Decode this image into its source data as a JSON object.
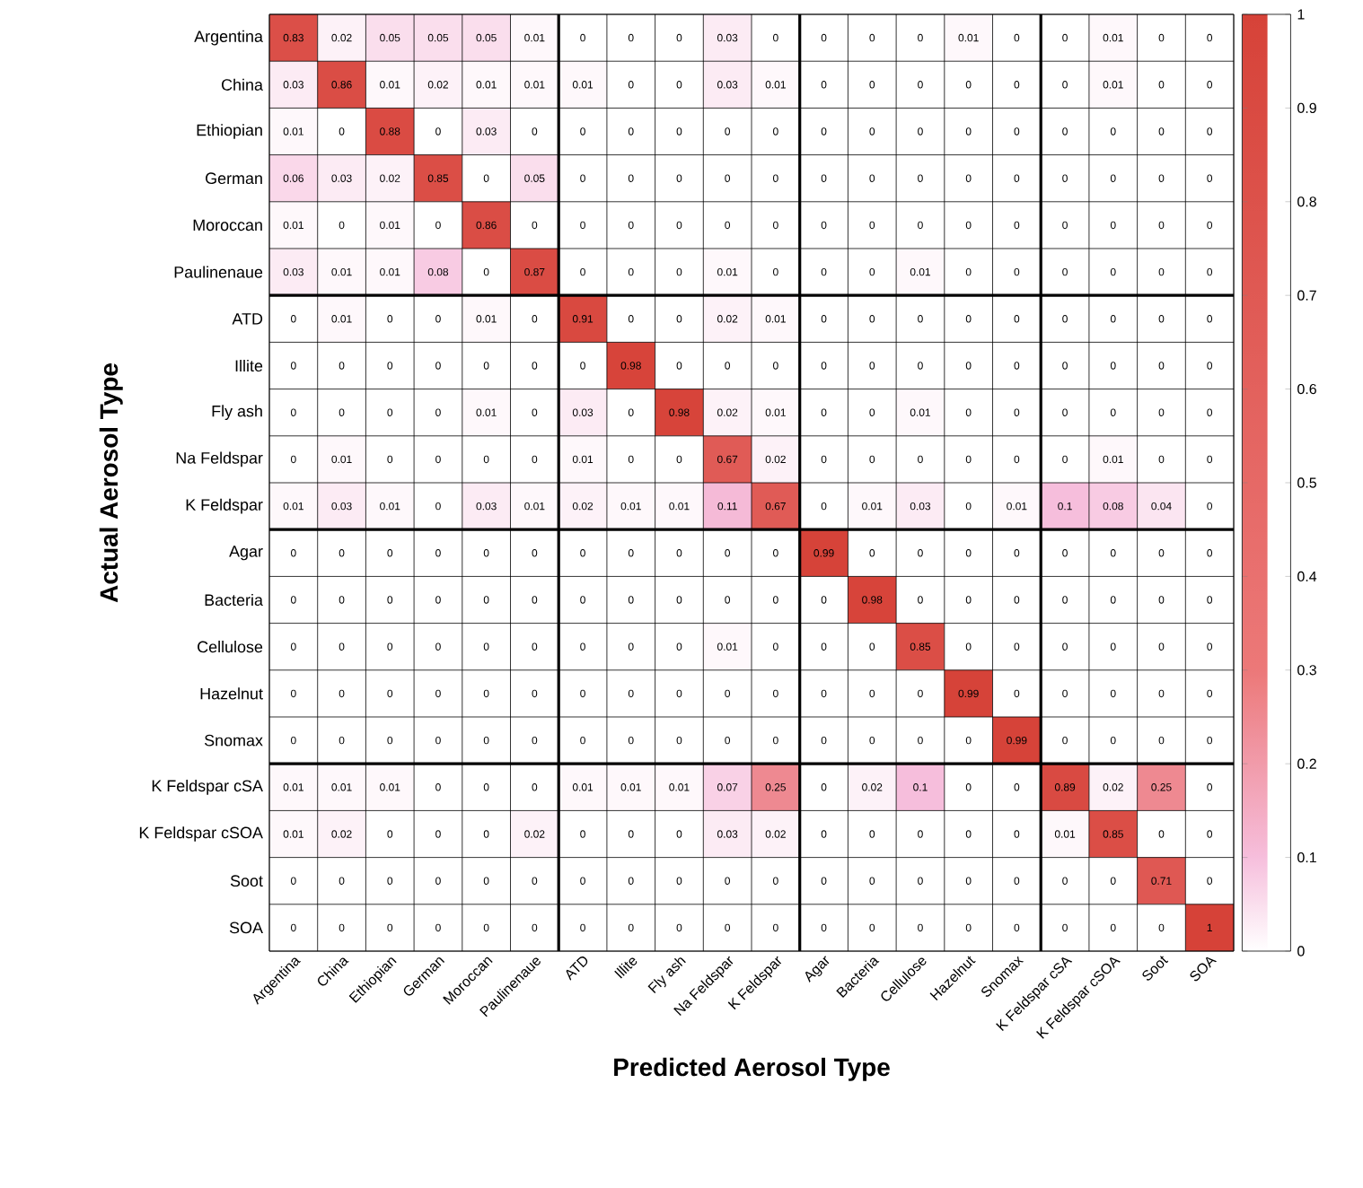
{
  "chart_data": {
    "type": "heatmap",
    "xlabel": "Predicted Aerosol Type",
    "ylabel": "Actual Aerosol Type",
    "categories": [
      "Argentina",
      "China",
      "Ethiopian",
      "German",
      "Moroccan",
      "Paulinenaue",
      "ATD",
      "Illite",
      "Fly ash",
      "Na Feldspar",
      "K Feldspar",
      "Agar",
      "Bacteria",
      "Cellulose",
      "Hazelnut",
      "Snomax",
      "K Feldspar cSA",
      "K Feldspar cSOA",
      "Soot",
      "SOA"
    ],
    "y_categories": [
      "Argentina",
      "China",
      "Ethiopian",
      "German",
      "Moroccan",
      "Paulinenaue",
      "ATD",
      "Illite",
      "Fly ash",
      "Na Feldspar",
      "K Feldspar",
      "Agar",
      "Bacteria",
      "Cellulose",
      "Hazelnut",
      "Snomax",
      "K Feldspar cSA",
      "K Feldspar cSOA",
      "Soot",
      "SOA"
    ],
    "cells": [
      [
        0.83,
        0.02,
        0.05,
        0.05,
        0.05,
        0.01,
        0,
        0,
        0,
        0.03,
        0,
        0,
        0,
        0,
        0.01,
        0,
        0,
        0.01,
        0,
        0
      ],
      [
        0.03,
        0.86,
        0.01,
        0.02,
        0.01,
        0.01,
        0.01,
        0,
        0,
        0.03,
        0.01,
        0,
        0,
        0,
        0,
        0,
        0,
        0.01,
        0,
        0
      ],
      [
        0.01,
        0,
        0.88,
        0,
        0.03,
        0,
        0,
        0,
        0,
        0,
        0,
        0,
        0,
        0,
        0,
        0,
        0,
        0,
        0,
        0
      ],
      [
        0.06,
        0.03,
        0.02,
        0.85,
        0,
        0.05,
        0,
        0,
        0,
        0,
        0,
        0,
        0,
        0,
        0,
        0,
        0,
        0,
        0,
        0
      ],
      [
        0.01,
        0,
        0.01,
        0,
        0.86,
        0,
        0,
        0,
        0,
        0,
        0,
        0,
        0,
        0,
        0,
        0,
        0,
        0,
        0,
        0
      ],
      [
        0.03,
        0.01,
        0.01,
        0.08,
        0,
        0.87,
        0,
        0,
        0,
        0.01,
        0,
        0,
        0,
        0.01,
        0,
        0,
        0,
        0,
        0,
        0
      ],
      [
        0,
        0.01,
        0,
        0,
        0.01,
        0,
        0.91,
        0,
        0,
        0.02,
        0.01,
        0,
        0,
        0,
        0,
        0,
        0,
        0,
        0,
        0
      ],
      [
        0,
        0,
        0,
        0,
        0,
        0,
        0,
        0.98,
        0,
        0,
        0,
        0,
        0,
        0,
        0,
        0,
        0,
        0,
        0,
        0
      ],
      [
        0,
        0,
        0,
        0,
        0.01,
        0,
        0.03,
        0,
        0.98,
        0.02,
        0.01,
        0,
        0,
        0.01,
        0,
        0,
        0,
        0,
        0,
        0
      ],
      [
        0,
        0.01,
        0,
        0,
        0,
        0,
        0.01,
        0,
        0,
        0.67,
        0.02,
        0,
        0,
        0,
        0,
        0,
        0,
        0.01,
        0,
        0
      ],
      [
        0.01,
        0.03,
        0.01,
        0,
        0.03,
        0.01,
        0.02,
        0.01,
        0.01,
        0.11,
        0.67,
        0,
        0.01,
        0.03,
        0,
        0.01,
        0.1,
        0.08,
        0.04,
        0
      ],
      [
        0,
        0,
        0,
        0,
        0,
        0,
        0,
        0,
        0,
        0,
        0,
        0.99,
        0,
        0,
        0,
        0,
        0,
        0,
        0,
        0
      ],
      [
        0,
        0,
        0,
        0,
        0,
        0,
        0,
        0,
        0,
        0,
        0,
        0,
        0.98,
        0,
        0,
        0,
        0,
        0,
        0,
        0
      ],
      [
        0,
        0,
        0,
        0,
        0,
        0,
        0,
        0,
        0,
        0.01,
        0,
        0,
        0,
        0.85,
        0,
        0,
        0,
        0,
        0,
        0
      ],
      [
        0,
        0,
        0,
        0,
        0,
        0,
        0,
        0,
        0,
        0,
        0,
        0,
        0,
        0,
        0.99,
        0,
        0,
        0,
        0,
        0
      ],
      [
        0,
        0,
        0,
        0,
        0,
        0,
        0,
        0,
        0,
        0,
        0,
        0,
        0,
        0,
        0,
        0.99,
        0,
        0,
        0,
        0
      ],
      [
        0.01,
        0.01,
        0.01,
        0,
        0,
        0,
        0.01,
        0.01,
        0.01,
        0.07,
        0.25,
        0,
        0.02,
        0.1,
        0,
        0,
        0.89,
        0.02,
        0.25,
        0
      ],
      [
        0.01,
        0.02,
        0,
        0,
        0,
        0.02,
        0,
        0,
        0,
        0.03,
        0.02,
        0,
        0,
        0,
        0,
        0,
        0.01,
        0.85,
        0,
        0
      ],
      [
        0,
        0,
        0,
        0,
        0,
        0,
        0,
        0,
        0,
        0,
        0,
        0,
        0,
        0,
        0,
        0,
        0,
        0,
        0.71,
        0
      ],
      [
        0,
        0,
        0,
        0,
        0,
        0,
        0,
        0,
        0,
        0,
        0,
        0,
        0,
        0,
        0,
        0,
        0,
        0,
        0,
        1
      ]
    ],
    "data_labels": true,
    "grid": true,
    "clim": [
      0,
      1
    ],
    "cticks": [
      0,
      0.1,
      0.2,
      0.3,
      0.4,
      0.5,
      0.6,
      0.7,
      0.8,
      0.9,
      1
    ]
  }
}
